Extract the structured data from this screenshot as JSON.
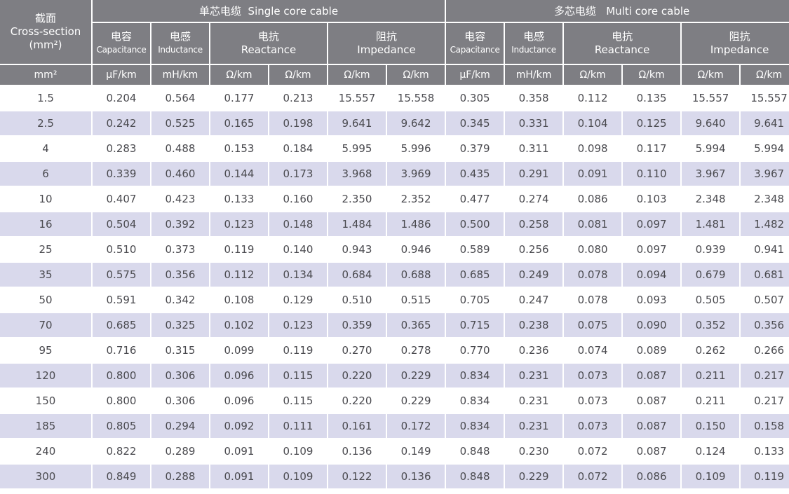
{
  "header": {
    "cross_section_zh": "截面",
    "cross_section_en": "Cross-section",
    "cross_section_unit": "(mm²)",
    "single_group": "单芯电缆  Single core cable",
    "multi_group": "多芯电缆   Multi core cable",
    "capacitance_zh": "电容",
    "capacitance_en": "Capacitance",
    "inductance_zh": "电感",
    "inductance_en": "Inductance",
    "reactance_zh": "电抗",
    "reactance_en": "Reactance",
    "impedance_zh": "阻抗",
    "impedance_en": "Impedance"
  },
  "units": [
    "mm²",
    "μF/km",
    "mH/km",
    "Ω/km",
    "Ω/km",
    "Ω/km",
    "Ω/km",
    "μF/km",
    "mH/km",
    "Ω/km",
    "Ω/km",
    "Ω/km",
    "Ω/km"
  ],
  "rows": [
    [
      "1.5",
      "0.204",
      "0.564",
      "0.177",
      "0.213",
      "15.557",
      "15.558",
      "0.305",
      "0.358",
      "0.112",
      "0.135",
      "15.557",
      "15.557"
    ],
    [
      "2.5",
      "0.242",
      "0.525",
      "0.165",
      "0.198",
      "9.641",
      "9.642",
      "0.345",
      "0.331",
      "0.104",
      "0.125",
      "9.640",
      "9.641"
    ],
    [
      "4",
      "0.283",
      "0.488",
      "0.153",
      "0.184",
      "5.995",
      "5.996",
      "0.379",
      "0.311",
      "0.098",
      "0.117",
      "5.994",
      "5.994"
    ],
    [
      "6",
      "0.339",
      "0.460",
      "0.144",
      "0.173",
      "3.968",
      "3.969",
      "0.435",
      "0.291",
      "0.091",
      "0.110",
      "3.967",
      "3.967"
    ],
    [
      "10",
      "0.407",
      "0.423",
      "0.133",
      "0.160",
      "2.350",
      "2.352",
      "0.477",
      "0.274",
      "0.086",
      "0.103",
      "2.348",
      "2.348"
    ],
    [
      "16",
      "0.504",
      "0.392",
      "0.123",
      "0.148",
      "1.484",
      "1.486",
      "0.500",
      "0.258",
      "0.081",
      "0.097",
      "1.481",
      "1.482"
    ],
    [
      "25",
      "0.510",
      "0.373",
      "0.119",
      "0.140",
      "0.943",
      "0.946",
      "0.589",
      "0.256",
      "0.080",
      "0.097",
      "0.939",
      "0.941"
    ],
    [
      "35",
      "0.575",
      "0.356",
      "0.112",
      "0.134",
      "0.684",
      "0.688",
      "0.685",
      "0.249",
      "0.078",
      "0.094",
      "0.679",
      "0.681"
    ],
    [
      "50",
      "0.591",
      "0.342",
      "0.108",
      "0.129",
      "0.510",
      "0.515",
      "0.705",
      "0.247",
      "0.078",
      "0.093",
      "0.505",
      "0.507"
    ],
    [
      "70",
      "0.685",
      "0.325",
      "0.102",
      "0.123",
      "0.359",
      "0.365",
      "0.715",
      "0.238",
      "0.075",
      "0.090",
      "0.352",
      "0.356"
    ],
    [
      "95",
      "0.716",
      "0.315",
      "0.099",
      "0.119",
      "0.270",
      "0.278",
      "0.770",
      "0.236",
      "0.074",
      "0.089",
      "0.262",
      "0.266"
    ],
    [
      "120",
      "0.800",
      "0.306",
      "0.096",
      "0.115",
      "0.220",
      "0.229",
      "0.834",
      "0.231",
      "0.073",
      "0.087",
      "0.211",
      "0.217"
    ],
    [
      "150",
      "0.800",
      "0.306",
      "0.096",
      "0.115",
      "0.220",
      "0.229",
      "0.834",
      "0.231",
      "0.073",
      "0.087",
      "0.211",
      "0.217"
    ],
    [
      "185",
      "0.805",
      "0.294",
      "0.092",
      "0.111",
      "0.161",
      "0.172",
      "0.834",
      "0.231",
      "0.073",
      "0.087",
      "0.150",
      "0.158"
    ],
    [
      "240",
      "0.822",
      "0.289",
      "0.091",
      "0.109",
      "0.136",
      "0.149",
      "0.848",
      "0.230",
      "0.072",
      "0.087",
      "0.124",
      "0.133"
    ],
    [
      "300",
      "0.849",
      "0.288",
      "0.091",
      "0.109",
      "0.122",
      "0.136",
      "0.848",
      "0.229",
      "0.072",
      "0.086",
      "0.109",
      "0.119"
    ]
  ],
  "colors": {
    "header_bg": "#7e7e83",
    "header_text": "#ffffff",
    "row_alt_bg": "#d9d9ec",
    "row_bg": "#ffffff",
    "cell_text": "#4a4a4f"
  }
}
